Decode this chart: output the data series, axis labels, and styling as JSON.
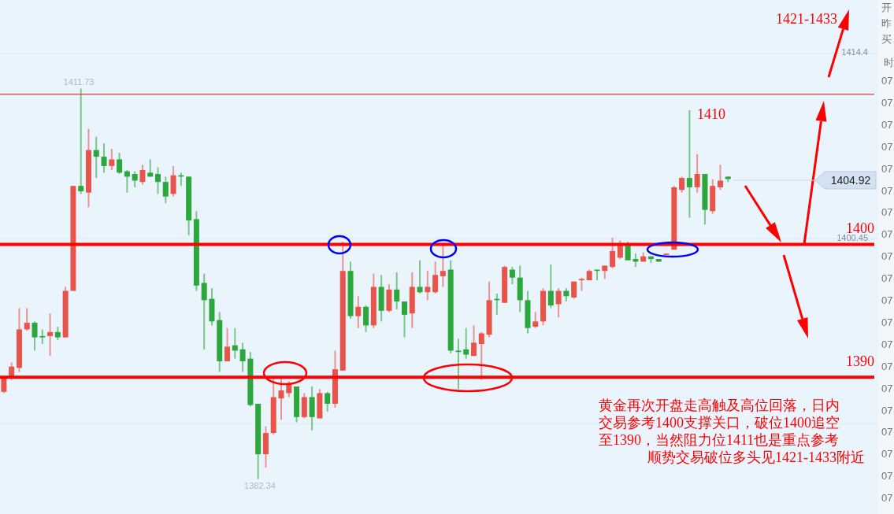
{
  "chart_data": {
    "type": "candlestick",
    "categories": [
      null,
      null,
      null,
      null,
      null,
      null,
      null,
      null,
      null,
      null,
      null,
      null,
      null,
      null,
      null,
      null,
      null,
      null,
      null,
      null,
      null,
      null,
      null,
      null,
      null,
      null,
      null,
      null,
      null,
      null,
      null,
      null,
      null,
      null,
      null,
      null,
      null,
      null,
      null,
      null,
      null,
      null,
      null,
      null,
      null,
      null,
      null,
      null,
      null,
      null,
      null,
      null,
      null,
      null,
      null,
      null,
      null,
      null,
      null,
      null,
      null,
      null,
      null,
      null,
      null,
      null,
      null,
      null,
      null,
      null,
      null,
      null,
      null,
      null,
      null,
      null,
      null,
      null,
      null,
      null,
      null,
      null,
      null,
      null,
      null,
      null,
      null,
      null,
      null,
      null,
      null,
      null,
      null,
      null,
      null,
      null,
      null,
      null,
      null,
      null,
      null,
      null,
      null,
      null,
      null,
      null,
      null,
      null,
      null,
      null,
      null,
      null,
      null,
      null
    ],
    "ohlc": [
      [
        1388.9,
        1390.1,
        1388.8,
        1389.9
      ],
      [
        1389.9,
        1391.1,
        1389.8,
        1390.8
      ],
      [
        1390.7,
        1395.2,
        1390.4,
        1393.6
      ],
      [
        1393.6,
        1395.2,
        1393.5,
        1394.1
      ],
      [
        1394.1,
        1394.2,
        1392.0,
        1393.0
      ],
      [
        1393.1,
        1393.6,
        1392.5,
        1393.0
      ],
      [
        1393.1,
        1394.8,
        1391.6,
        1393.4
      ],
      [
        1393.4,
        1393.8,
        1392.8,
        1393.0
      ],
      [
        1393.0,
        1396.8,
        1393.0,
        1396.5
      ],
      [
        1396.5,
        1404.4,
        1396.5,
        1404.4
      ],
      [
        1404.4,
        1411.73,
        1403.8,
        1404.0
      ],
      [
        1403.9,
        1408.7,
        1402.8,
        1407.1
      ],
      [
        1407.1,
        1408.1,
        1405.0,
        1406.6
      ],
      [
        1406.6,
        1407.6,
        1405.4,
        1405.9
      ],
      [
        1405.9,
        1407.2,
        1405.6,
        1406.4
      ],
      [
        1406.4,
        1406.9,
        1405.3,
        1405.4
      ],
      [
        1405.5,
        1405.6,
        1403.9,
        1405.1
      ],
      [
        1405.3,
        1405.5,
        1404.3,
        1404.8
      ],
      [
        1404.7,
        1406.0,
        1404.5,
        1405.6
      ],
      [
        1405.4,
        1406.4,
        1405.1,
        1405.1
      ],
      [
        1405.3,
        1405.8,
        1403.8,
        1404.7
      ],
      [
        1404.7,
        1405.1,
        1403.1,
        1403.6
      ],
      [
        1403.8,
        1405.9,
        1403.6,
        1405.2
      ],
      [
        1405.2,
        1405.4,
        1404.4,
        1405.1
      ],
      [
        1405.1,
        1405.1,
        1400.7,
        1401.8
      ],
      [
        1401.9,
        1402.5,
        1396.5,
        1396.9
      ],
      [
        1397.1,
        1397.8,
        1392.1,
        1395.8
      ],
      [
        1395.9,
        1396.7,
        1393.9,
        1394.2
      ],
      [
        1394.3,
        1394.9,
        1390.4,
        1391.2
      ],
      [
        1391.2,
        1393.7,
        1391.2,
        1392.3
      ],
      [
        1392.4,
        1393.7,
        1391.4,
        1392.0
      ],
      [
        1392.1,
        1392.6,
        1390.4,
        1391.2
      ],
      [
        1391.4,
        1391.9,
        1387.8,
        1387.9
      ],
      [
        1388.0,
        1388.0,
        1382.34,
        1384.2
      ],
      [
        1384.2,
        1386.3,
        1383.2,
        1385.8
      ],
      [
        1385.8,
        1390.1,
        1385.7,
        1388.5
      ],
      [
        1388.4,
        1390.1,
        1386.8,
        1389.0
      ],
      [
        1388.8,
        1389.7,
        1388.5,
        1389.5
      ],
      [
        1389.3,
        1389.3,
        1386.6,
        1387.0
      ],
      [
        1387.0,
        1388.8,
        1386.9,
        1388.5
      ],
      [
        1388.5,
        1389.3,
        1386.0,
        1387.0
      ],
      [
        1386.9,
        1389.1,
        1386.9,
        1388.8
      ],
      [
        1388.8,
        1388.9,
        1387.4,
        1388.0
      ],
      [
        1388.0,
        1392.0,
        1387.7,
        1390.6
      ],
      [
        1390.5,
        1400.2,
        1390.5,
        1398.0
      ],
      [
        1398.0,
        1398.7,
        1394.4,
        1394.6
      ],
      [
        1394.6,
        1396.1,
        1393.7,
        1395.3
      ],
      [
        1395.3,
        1395.4,
        1393.4,
        1393.9
      ],
      [
        1393.9,
        1397.8,
        1393.7,
        1396.8
      ],
      [
        1396.8,
        1397.7,
        1394.2,
        1395.0
      ],
      [
        1395.0,
        1397.0,
        1394.9,
        1396.6
      ],
      [
        1396.6,
        1397.9,
        1395.1,
        1395.7
      ],
      [
        1395.7,
        1395.7,
        1393.0,
        1394.7
      ],
      [
        1394.8,
        1397.9,
        1393.7,
        1396.8
      ],
      [
        1396.8,
        1398.8,
        1396.3,
        1396.4
      ],
      [
        1396.4,
        1398.0,
        1395.8,
        1396.8
      ],
      [
        1396.4,
        1398.7,
        1396.3,
        1397.7
      ],
      [
        1397.6,
        1399.9,
        1396.8,
        1398.0
      ],
      [
        1398.1,
        1398.8,
        1391.8,
        1392.0
      ],
      [
        1392.0,
        1392.9,
        1389.1,
        1391.9
      ],
      [
        1392.1,
        1393.7,
        1391.4,
        1391.7
      ],
      [
        1391.6,
        1393.9,
        1391.6,
        1392.6
      ],
      [
        1392.5,
        1393.4,
        1389.8,
        1393.3
      ],
      [
        1393.2,
        1397.2,
        1393.0,
        1395.8
      ],
      [
        1395.9,
        1396.3,
        1394.7,
        1395.8
      ],
      [
        1395.6,
        1398.4,
        1395.6,
        1398.3
      ],
      [
        1398.1,
        1398.3,
        1397.0,
        1397.5
      ],
      [
        1397.5,
        1398.4,
        1394.9,
        1395.8
      ],
      [
        1395.8,
        1396.5,
        1393.3,
        1393.7
      ],
      [
        1393.8,
        1394.9,
        1393.7,
        1394.2
      ],
      [
        1394.2,
        1396.7,
        1393.9,
        1396.5
      ],
      [
        1396.5,
        1398.5,
        1395.2,
        1395.4
      ],
      [
        1395.5,
        1396.7,
        1394.5,
        1396.5
      ],
      [
        1396.5,
        1396.7,
        1395.7,
        1396.1
      ],
      [
        1396.0,
        1397.2,
        1395.9,
        1397.2
      ],
      [
        1397.3,
        1397.5,
        1396.5,
        1397.4
      ],
      [
        1397.3,
        1398.1,
        1397.3,
        1398.0
      ],
      [
        1398.1,
        1398.1,
        1397.3,
        1398.0
      ],
      [
        1398.0,
        1398.4,
        1397.4,
        1398.4
      ],
      [
        1398.3,
        1400.5,
        1398.2,
        1399.5
      ],
      [
        1399.0,
        1400.3,
        1398.9,
        1399.9
      ],
      [
        1399.9,
        1400.2,
        1398.8,
        1398.8
      ],
      [
        1398.9,
        1399.3,
        1398.3,
        1398.7
      ],
      [
        1398.7,
        1399.4,
        1398.7,
        1399.1
      ],
      [
        1399.1,
        1399.1,
        1398.6,
        1398.9
      ],
      [
        1398.9,
        1398.9,
        1398.7,
        1398.7
      ],
      [
        1399.2,
        1399.3,
        1399.2,
        1399.3
      ],
      [
        1399.6,
        1404.4,
        1399.6,
        1404.3
      ],
      [
        1404.1,
        1405.1,
        1403.9,
        1405.0
      ],
      [
        1405.0,
        1410.1,
        1402.0,
        1404.3
      ],
      [
        1404.3,
        1406.8,
        1403.9,
        1405.3
      ],
      [
        1405.3,
        1405.3,
        1401.5,
        1402.6
      ],
      [
        1402.5,
        1404.9,
        1402.3,
        1404.4
      ],
      [
        1404.3,
        1406.0,
        1404.1,
        1404.8
      ],
      [
        1405.1,
        1405.1,
        1404.7,
        1404.92
      ],
      null,
      null,
      null,
      null,
      null,
      null,
      null,
      null,
      null,
      null,
      null,
      null,
      null,
      null,
      null,
      null,
      null,
      null,
      null
    ],
    "colors": [
      "#e9544a",
      "#e9544a",
      "#e9544a",
      "#e9544a",
      "#2ca73b",
      "#2ca73b",
      "#e9544a",
      "#2ca73b",
      "#e9544a",
      "#e9544a",
      "#2ca73b",
      "#e9544a",
      "#2ca73b",
      "#2ca73b",
      "#e9544a",
      "#2ca73b",
      "#2ca73b",
      "#2ca73b",
      "#e9544a",
      "#2ca73b",
      "#2ca73b",
      "#2ca73b",
      "#e9544a",
      "#2ca73b",
      "#2ca73b",
      "#2ca73b",
      "#2ca73b",
      "#2ca73b",
      "#2ca73b",
      "#e9544a",
      "#2ca73b",
      "#2ca73b",
      "#2ca73b",
      "#2ca73b",
      "#e9544a",
      "#e9544a",
      "#e9544a",
      "#e9544a",
      "#2ca73b",
      "#e9544a",
      "#2ca73b",
      "#e9544a",
      "#2ca73b",
      "#e9544a",
      "#e9544a",
      "#2ca73b",
      "#e9544a",
      "#2ca73b",
      "#e9544a",
      "#2ca73b",
      "#e9544a",
      "#2ca73b",
      "#2ca73b",
      "#e9544a",
      "#2ca73b",
      "#e9544a",
      "#e9544a",
      "#e9544a",
      "#2ca73b",
      "#2ca73b",
      "#2ca73b",
      "#e9544a",
      "#e9544a",
      "#e9544a",
      "#2ca73b",
      "#e9544a",
      "#2ca73b",
      "#2ca73b",
      "#2ca73b",
      "#e9544a",
      "#e9544a",
      "#2ca73b",
      "#e9544a",
      "#2ca73b",
      "#e9544a",
      "#e9544a",
      "#e9544a",
      "#2ca73b",
      "#e9544a",
      "#e9544a",
      "#e9544a",
      "#2ca73b",
      "#2ca73b",
      "#e9544a",
      "#2ca73b",
      "#2ca73b",
      "#e9544a",
      "#e9544a",
      "#e9544a",
      "#2ca73b",
      "#e9544a",
      "#2ca73b",
      "#e9544a",
      "#e9544a",
      "#2ca73b",
      null,
      null,
      null,
      null,
      null,
      null,
      null,
      null,
      null,
      null,
      null,
      null,
      null,
      null,
      null,
      null,
      null,
      null,
      null
    ],
    "ylim": [
      1379.7,
      1418.4
    ],
    "yticks": [
      1414.4,
      1400.45,
      {
        "value": 1386.5,
        "label": null
      }
    ],
    "grid": "y",
    "ref_lines": [
      {
        "axis": "y",
        "value": 1411.3,
        "color": "#ff0000"
      },
      {
        "axis": "y",
        "value": 1400,
        "label": "1400",
        "color": "#ff0000"
      },
      {
        "axis": "y",
        "value": 1390,
        "label": "1390",
        "color": "#ff0000"
      }
    ],
    "annotations": [
      "1411.73",
      "1382.34",
      "1410",
      "1404.92",
      "1421-1433",
      "黄金再次开盘走高触及高位回落，日内",
      "交易参考1400支撑关口，破位1400追空",
      "至1390，当然阻力位1411也是重点参考",
      "顺势交易破位多头见1421-1433附近",
      "开",
      "昨",
      "买",
      "时",
      "07",
      "07",
      "07",
      "07",
      "07",
      "07",
      "07",
      "07",
      "07",
      "07",
      "07",
      "07",
      "07",
      "07",
      "07",
      "07",
      "07",
      "07",
      "07",
      "07"
    ]
  }
}
